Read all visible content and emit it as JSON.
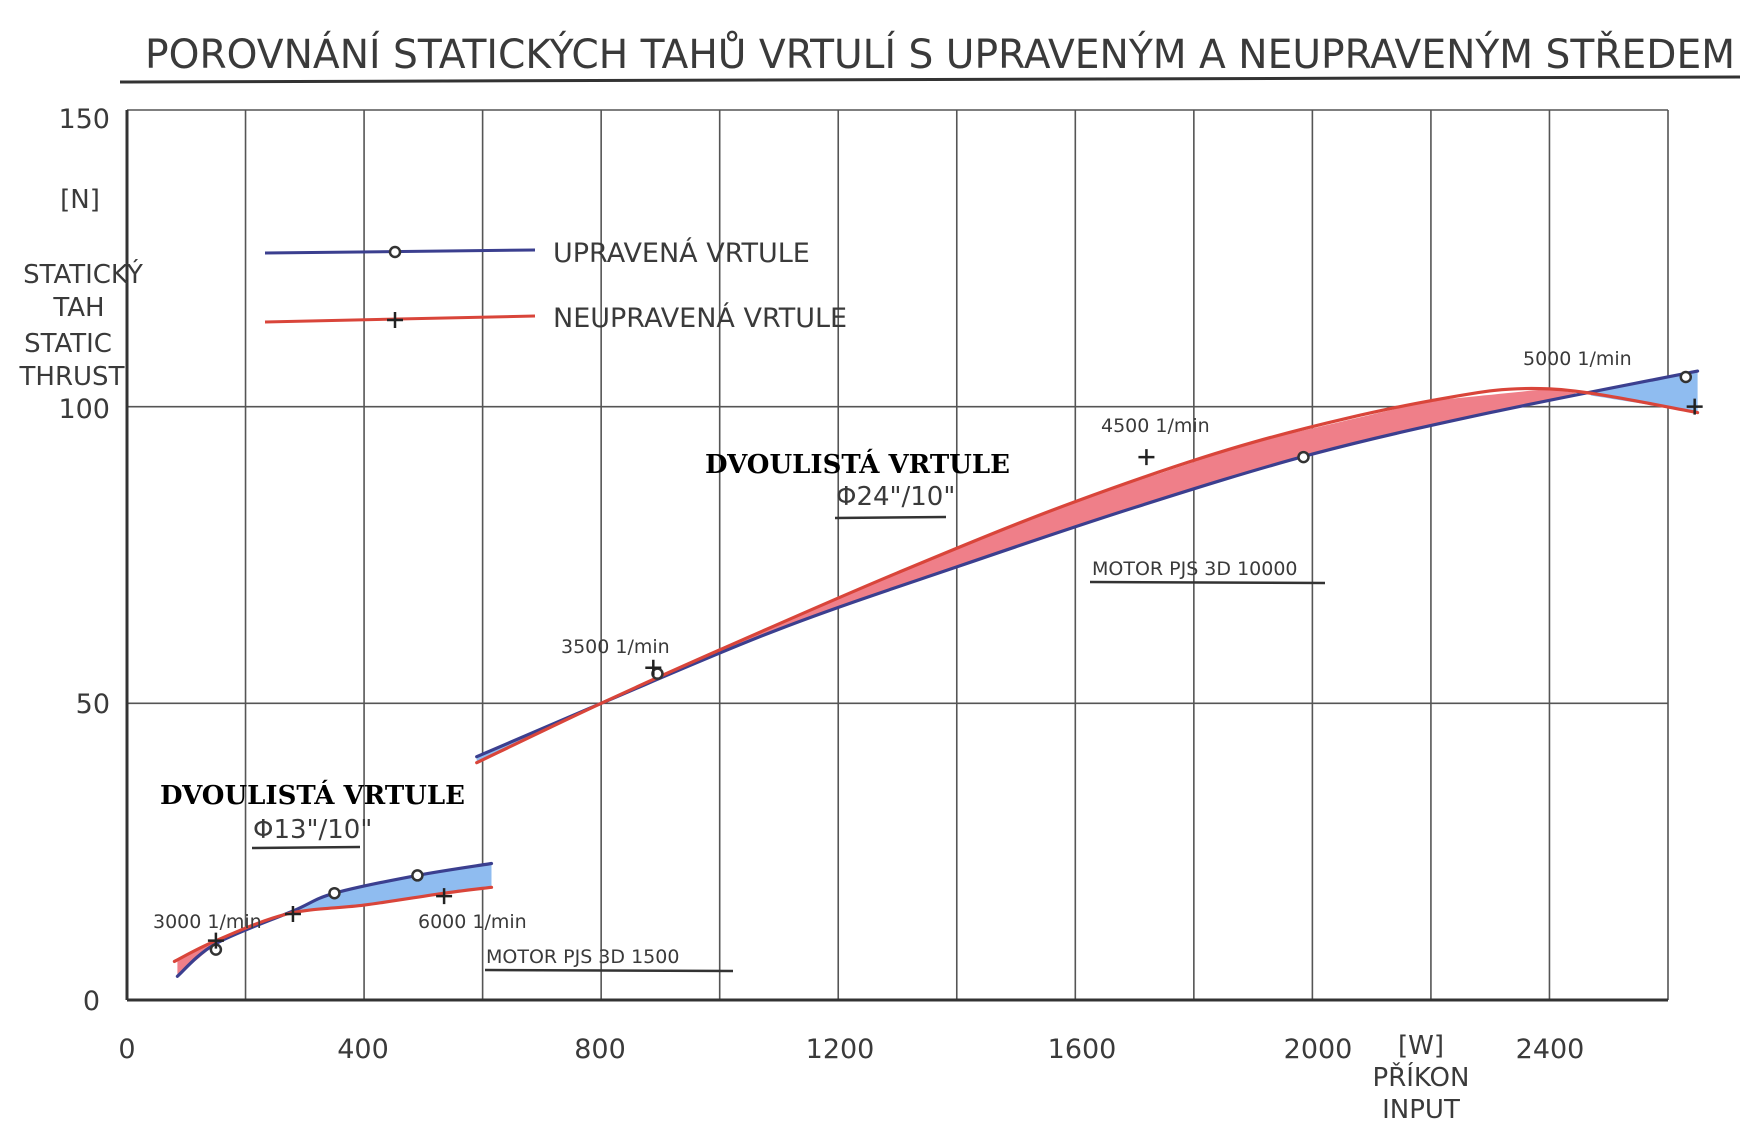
{
  "chart_data": {
    "type": "line",
    "title": "POROVNÁNÍ STATICKÝCH  TAHŮ VRTULÍ S UPRAVENÝM A NEUPRAVENÝM STŘEDEM",
    "ylabel_lines": [
      "[N]",
      "STATICKÝ",
      "TAH",
      "STATIC",
      "THRUST"
    ],
    "xlabel_unit": "[W]",
    "xlabel_lines": [
      "PŘÍKON",
      "INPUT"
    ],
    "xlim": [
      0,
      2600
    ],
    "ylim": [
      0,
      150
    ],
    "xticks": [
      0,
      400,
      800,
      1200,
      1600,
      2000,
      2400
    ],
    "xtick_labels": [
      "0",
      "400",
      "800",
      "1200",
      "1600",
      "2000",
      "2400"
    ],
    "yticks": [
      0,
      50,
      100,
      150
    ],
    "ytick_labels": [
      "0",
      "50",
      "100",
      "150"
    ],
    "xgrid_step": 200,
    "legend": {
      "placement": "top-left",
      "entries": [
        {
          "label": "UPRAVENÁ VRTULE",
          "marker": "circle",
          "color": "#3b3f8f"
        },
        {
          "label": "NEUPRAVENÁ VRTULE",
          "marker": "plus",
          "color": "#d9453a"
        }
      ]
    },
    "colors": {
      "upravena": "#3b3f8f",
      "neupravena": "#d9453a",
      "fill_red": "#ef7f89",
      "fill_blue": "#8fbcf0",
      "grid": "#555555",
      "axis": "#333333"
    },
    "groups": [
      {
        "name": "small",
        "propeller": "DVOULISTÁ  VRTULE",
        "size": "Φ13\"/10\"",
        "motor": "MOTOR  PJS  3D 1500",
        "rpm_labels": [
          "3000 1/min",
          "6000 1/min"
        ],
        "series": [
          {
            "name": "UPRAVENÁ VRTULE",
            "x": [
              85,
              150,
              280,
              350,
              490,
              615
            ],
            "y": [
              4,
              9.5,
              15,
              18,
              21,
              23
            ]
          },
          {
            "name": "NEUPRAVENÁ VRTULE",
            "x": [
              80,
              150,
              270,
              400,
              535,
              615
            ],
            "y": [
              6.5,
              10,
              14.5,
              16,
              18,
              19
            ]
          }
        ],
        "markers": [
          {
            "series": "UPRAVENÁ VRTULE",
            "x": [
              150,
              350,
              490
            ],
            "y": [
              8.5,
              18,
              21
            ]
          },
          {
            "series": "NEUPRAVENÁ VRTULE",
            "x": [
              150,
              280,
              535
            ],
            "y": [
              10,
              14.5,
              17.5
            ]
          }
        ]
      },
      {
        "name": "large",
        "propeller": "DVOULISTÁ  VRTULE",
        "size": "Φ24\"/10\"",
        "motor": "MOTOR  PJS  3D 10000",
        "rpm_labels": [
          "3500 1/min",
          "4500 1/min",
          "5000 1/min"
        ],
        "series": [
          {
            "name": "UPRAVENÁ VRTULE",
            "x": [
              590,
              800,
              1100,
              1400,
              1700,
              2000,
              2300,
              2650
            ],
            "y": [
              41,
              50,
              62.5,
              73,
              83,
              92,
              99,
              106
            ]
          },
          {
            "name": "NEUPRAVENÁ VRTULE",
            "x": [
              590,
              800,
              1000,
              1300,
              1600,
              1900,
              2200,
              2400,
              2650
            ],
            "y": [
              40,
              50,
              59,
              72,
              84,
              94,
              101,
              103,
              99
            ]
          }
        ],
        "markers": [
          {
            "series": "UPRAVENÁ VRTULE",
            "x": [
              895,
              1985,
              2630
            ],
            "y": [
              55,
              91.5,
              105
            ]
          },
          {
            "series": "NEUPRAVENÁ VRTULE",
            "x": [
              888,
              1720,
              2645
            ],
            "y": [
              56,
              91.5,
              100
            ]
          }
        ]
      }
    ]
  }
}
